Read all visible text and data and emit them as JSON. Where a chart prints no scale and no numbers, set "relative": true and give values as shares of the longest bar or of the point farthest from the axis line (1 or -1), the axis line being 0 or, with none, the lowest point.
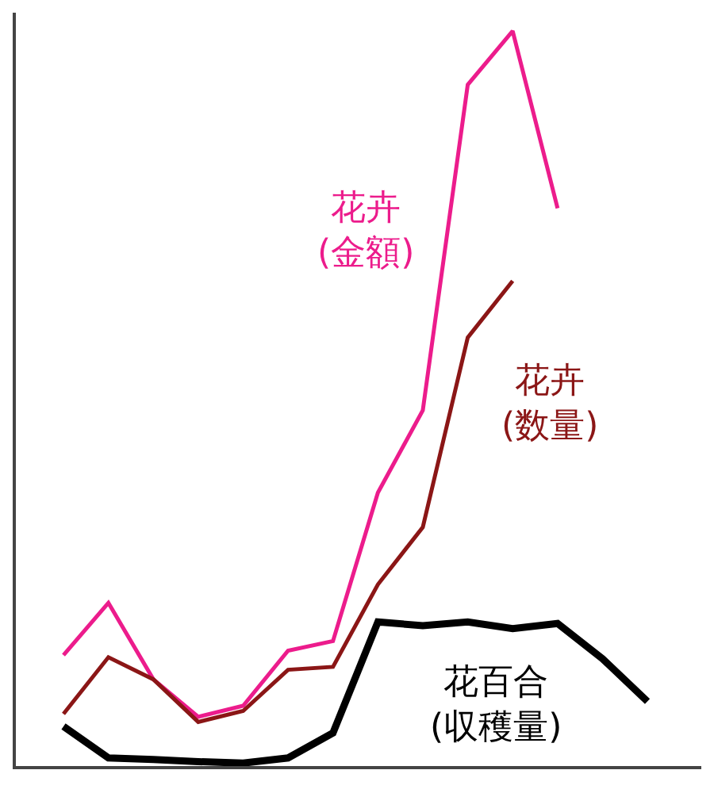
{
  "chart_data": {
    "type": "line",
    "relative": true,
    "legend": false,
    "marker": "none",
    "line_style": "solid",
    "categories": [
      null,
      null,
      null,
      null,
      null,
      null,
      null,
      null,
      null,
      null,
      null,
      null,
      null,
      null
    ],
    "series": [
      {
        "name": "花卉\n(金額)",
        "color": "#ec1c8c",
        "values": [
          0.151,
          0.222,
          0.118,
          0.067,
          0.082,
          0.157,
          0.17,
          0.372,
          0.484,
          0.927,
          1,
          0.759,
          null,
          null
        ]
      },
      {
        "name": "花卉\n(数量)",
        "color": "#8b1616",
        "values": [
          0.071,
          0.148,
          0.118,
          0.06,
          0.075,
          0.131,
          0.135,
          0.247,
          0.325,
          0.583,
          0.66,
          null,
          null,
          null
        ]
      },
      {
        "name": "花百合\n(収穫量)",
        "color": "#000000",
        "values": [
          0.054,
          0.011,
          0.009,
          0.006,
          0.004,
          0.011,
          0.045,
          0.196,
          0.191,
          0.196,
          0.187,
          0.194,
          0.146,
          0.088
        ]
      }
    ]
  }
}
